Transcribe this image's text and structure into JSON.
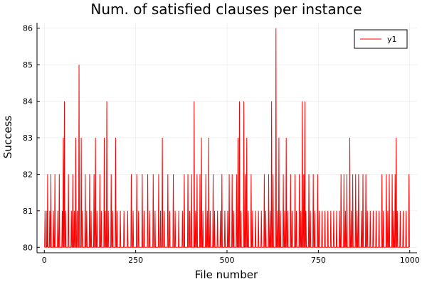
{
  "chart_data": {
    "type": "line",
    "title": "Num. of satisfied clauses per instance",
    "xlabel": "File number",
    "ylabel": "Success",
    "xlim": [
      -20,
      1020
    ],
    "ylim": [
      79.85,
      86.15
    ],
    "xticks": [
      0,
      250,
      500,
      750,
      1000
    ],
    "yticks": [
      80,
      81,
      82,
      83,
      84,
      85,
      86
    ],
    "grid": true,
    "legend_position": "top-right",
    "series": [
      {
        "name": "y1",
        "color": "#ff0000",
        "peaks": [
          [
            2,
            81
          ],
          [
            5,
            80
          ],
          [
            7,
            81
          ],
          [
            9,
            82
          ],
          [
            12,
            80
          ],
          [
            15,
            81
          ],
          [
            18,
            82
          ],
          [
            21,
            80
          ],
          [
            25,
            81
          ],
          [
            29,
            82
          ],
          [
            33,
            80
          ],
          [
            37,
            81
          ],
          [
            41,
            82
          ],
          [
            45,
            80
          ],
          [
            49,
            81
          ],
          [
            52,
            83
          ],
          [
            55,
            84
          ],
          [
            58,
            81
          ],
          [
            62,
            80
          ],
          [
            66,
            82
          ],
          [
            70,
            80
          ],
          [
            74,
            81
          ],
          [
            78,
            82
          ],
          [
            82,
            81
          ],
          [
            86,
            83
          ],
          [
            90,
            81
          ],
          [
            95,
            85
          ],
          [
            98,
            80
          ],
          [
            101,
            83
          ],
          [
            104,
            81
          ],
          [
            108,
            80
          ],
          [
            112,
            82
          ],
          [
            116,
            81
          ],
          [
            120,
            80
          ],
          [
            124,
            82
          ],
          [
            128,
            81
          ],
          [
            132,
            80
          ],
          [
            136,
            82
          ],
          [
            140,
            83
          ],
          [
            144,
            81
          ],
          [
            148,
            80
          ],
          [
            152,
            82
          ],
          [
            156,
            81
          ],
          [
            160,
            80
          ],
          [
            164,
            83
          ],
          [
            167,
            81
          ],
          [
            171,
            84
          ],
          [
            175,
            81
          ],
          [
            179,
            80
          ],
          [
            183,
            82
          ],
          [
            187,
            81
          ],
          [
            191,
            80
          ],
          [
            195,
            83
          ],
          [
            199,
            81
          ],
          [
            203,
            80
          ],
          [
            208,
            81
          ],
          [
            213,
            80
          ],
          [
            218,
            81
          ],
          [
            223,
            80
          ],
          [
            228,
            81
          ],
          [
            233,
            80
          ],
          [
            238,
            82
          ],
          [
            243,
            81
          ],
          [
            248,
            80
          ],
          [
            253,
            82
          ],
          [
            258,
            81
          ],
          [
            263,
            80
          ],
          [
            268,
            82
          ],
          [
            273,
            81
          ],
          [
            278,
            80
          ],
          [
            283,
            82
          ],
          [
            288,
            81
          ],
          [
            293,
            80
          ],
          [
            298,
            82
          ],
          [
            303,
            81
          ],
          [
            308,
            80
          ],
          [
            313,
            82
          ],
          [
            318,
            81
          ],
          [
            323,
            83
          ],
          [
            328,
            81
          ],
          [
            333,
            80
          ],
          [
            338,
            82
          ],
          [
            343,
            81
          ],
          [
            348,
            80
          ],
          [
            353,
            82
          ],
          [
            358,
            81
          ],
          [
            363,
            80
          ],
          [
            368,
            81
          ],
          [
            373,
            80
          ],
          [
            378,
            81
          ],
          [
            383,
            82
          ],
          [
            388,
            80
          ],
          [
            393,
            82
          ],
          [
            398,
            81
          ],
          [
            403,
            82
          ],
          [
            408,
            80
          ],
          [
            410,
            84
          ],
          [
            414,
            81
          ],
          [
            418,
            82
          ],
          [
            422,
            80
          ],
          [
            426,
            82
          ],
          [
            430,
            83
          ],
          [
            434,
            81
          ],
          [
            438,
            80
          ],
          [
            442,
            82
          ],
          [
            446,
            81
          ],
          [
            450,
            83
          ],
          [
            454,
            81
          ],
          [
            458,
            80
          ],
          [
            462,
            82
          ],
          [
            466,
            81
          ],
          [
            470,
            80
          ],
          [
            474,
            81
          ],
          [
            478,
            80
          ],
          [
            482,
            81
          ],
          [
            486,
            82
          ],
          [
            490,
            80
          ],
          [
            494,
            81
          ],
          [
            498,
            80
          ],
          [
            502,
            81
          ],
          [
            506,
            82
          ],
          [
            510,
            80
          ],
          [
            514,
            82
          ],
          [
            518,
            81
          ],
          [
            522,
            80
          ],
          [
            526,
            82
          ],
          [
            530,
            83
          ],
          [
            534,
            84
          ],
          [
            538,
            81
          ],
          [
            542,
            80
          ],
          [
            546,
            84
          ],
          [
            550,
            82
          ],
          [
            554,
            83
          ],
          [
            558,
            81
          ],
          [
            562,
            80
          ],
          [
            566,
            82
          ],
          [
            570,
            81
          ],
          [
            574,
            80
          ],
          [
            578,
            81
          ],
          [
            582,
            80
          ],
          [
            586,
            81
          ],
          [
            590,
            80
          ],
          [
            594,
            81
          ],
          [
            598,
            80
          ],
          [
            602,
            82
          ],
          [
            606,
            81
          ],
          [
            610,
            80
          ],
          [
            614,
            82
          ],
          [
            618,
            81
          ],
          [
            622,
            84
          ],
          [
            626,
            82
          ],
          [
            630,
            80
          ],
          [
            634,
            86
          ],
          [
            638,
            81
          ],
          [
            642,
            83
          ],
          [
            646,
            81
          ],
          [
            650,
            80
          ],
          [
            654,
            82
          ],
          [
            658,
            81
          ],
          [
            662,
            83
          ],
          [
            666,
            81
          ],
          [
            670,
            80
          ],
          [
            674,
            82
          ],
          [
            678,
            81
          ],
          [
            682,
            80
          ],
          [
            686,
            82
          ],
          [
            690,
            81
          ],
          [
            694,
            80
          ],
          [
            698,
            82
          ],
          [
            702,
            81
          ],
          [
            706,
            84
          ],
          [
            710,
            82
          ],
          [
            713,
            84
          ],
          [
            716,
            81
          ],
          [
            720,
            80
          ],
          [
            724,
            82
          ],
          [
            728,
            81
          ],
          [
            732,
            80
          ],
          [
            736,
            82
          ],
          [
            740,
            81
          ],
          [
            744,
            80
          ],
          [
            748,
            82
          ],
          [
            752,
            81
          ],
          [
            756,
            80
          ],
          [
            760,
            81
          ],
          [
            764,
            80
          ],
          [
            768,
            81
          ],
          [
            772,
            80
          ],
          [
            776,
            81
          ],
          [
            780,
            80
          ],
          [
            784,
            81
          ],
          [
            788,
            80
          ],
          [
            792,
            81
          ],
          [
            796,
            80
          ],
          [
            800,
            81
          ],
          [
            804,
            80
          ],
          [
            808,
            81
          ],
          [
            812,
            82
          ],
          [
            816,
            80
          ],
          [
            820,
            82
          ],
          [
            824,
            81
          ],
          [
            828,
            82
          ],
          [
            832,
            80
          ],
          [
            836,
            83
          ],
          [
            840,
            81
          ],
          [
            844,
            82
          ],
          [
            848,
            80
          ],
          [
            852,
            82
          ],
          [
            856,
            81
          ],
          [
            860,
            82
          ],
          [
            864,
            80
          ],
          [
            868,
            81
          ],
          [
            872,
            82
          ],
          [
            876,
            80
          ],
          [
            880,
            82
          ],
          [
            884,
            81
          ],
          [
            888,
            80
          ],
          [
            892,
            81
          ],
          [
            896,
            80
          ],
          [
            900,
            81
          ],
          [
            904,
            80
          ],
          [
            908,
            81
          ],
          [
            912,
            80
          ],
          [
            916,
            81
          ],
          [
            920,
            80
          ],
          [
            924,
            82
          ],
          [
            928,
            81
          ],
          [
            932,
            80
          ],
          [
            936,
            82
          ],
          [
            940,
            81
          ],
          [
            944,
            82
          ],
          [
            948,
            80
          ],
          [
            952,
            82
          ],
          [
            956,
            81
          ],
          [
            960,
            82
          ],
          [
            963,
            83
          ],
          [
            966,
            81
          ],
          [
            970,
            80
          ],
          [
            974,
            81
          ],
          [
            978,
            80
          ],
          [
            982,
            81
          ],
          [
            986,
            80
          ],
          [
            990,
            81
          ],
          [
            994,
            80
          ],
          [
            998,
            82
          ]
        ]
      }
    ]
  }
}
